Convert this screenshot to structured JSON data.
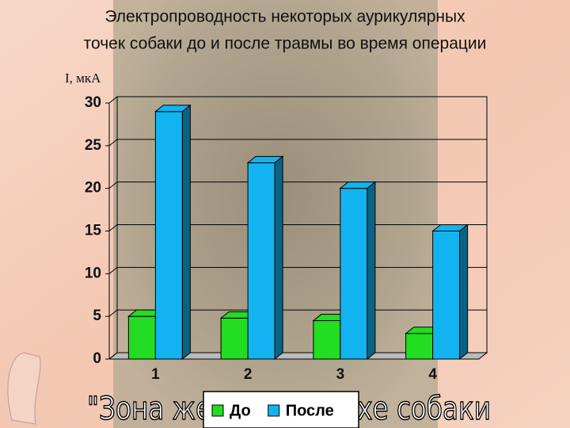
{
  "chart_data": {
    "type": "bar3d",
    "title": "Электропроводность некоторых аурикулярных точек собаки до и после травмы во время операции",
    "title_lines": [
      "Электропроводность некоторых аурикулярных",
      "точек собаки до и после травмы во время операции"
    ],
    "y_label": "I, мкА",
    "caption": "\"Зона желудка на ухе собаки",
    "categories": [
      "1",
      "2",
      "3",
      "4"
    ],
    "series": [
      {
        "name": "До",
        "color": "#22dd22",
        "values": [
          5,
          4.8,
          4.5,
          3
        ]
      },
      {
        "name": "После",
        "color": "#11b4f0",
        "values": [
          29,
          23,
          20,
          15
        ]
      }
    ],
    "ylim": [
      0,
      30
    ],
    "yticks": [
      0,
      5,
      10,
      15,
      20,
      25,
      30
    ],
    "grid": true,
    "legend": "bottom"
  }
}
